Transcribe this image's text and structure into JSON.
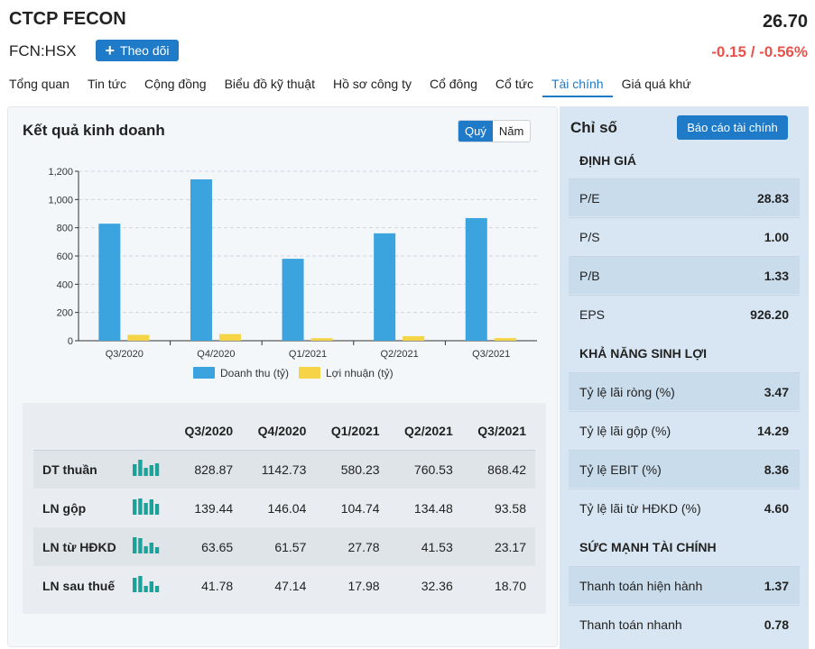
{
  "header": {
    "company_name": "CTCP FECON",
    "ticker": "FCN:HSX",
    "follow_label": "Theo dõi",
    "price": "26.70",
    "change": "-0.15 / -0.56%",
    "change_color": "#e8524a"
  },
  "tabs": [
    {
      "label": "Tổng quan"
    },
    {
      "label": "Tin tức"
    },
    {
      "label": "Cộng đồng"
    },
    {
      "label": "Biểu đồ kỹ thuật"
    },
    {
      "label": "Hồ sơ công ty"
    },
    {
      "label": "Cổ đông"
    },
    {
      "label": "Cổ tức"
    },
    {
      "label": "Tài chính",
      "active": true
    },
    {
      "label": "Giá quá khứ"
    }
  ],
  "business": {
    "title": "Kết quả kinh doanh",
    "toggle_quarter": "Quý",
    "toggle_year": "Năm",
    "toggle_selected": "Quý"
  },
  "chart_data": {
    "type": "bar",
    "categories": [
      "Q3/2020",
      "Q4/2020",
      "Q1/2021",
      "Q2/2021",
      "Q3/2021"
    ],
    "series": [
      {
        "name": "Doanh thu (tỷ)",
        "values": [
          828.87,
          1142.73,
          580.23,
          760.53,
          868.42
        ],
        "color": "#3ba3dd"
      },
      {
        "name": "Lợi nhuận (tỷ)",
        "values": [
          41.78,
          47.14,
          17.98,
          32.36,
          18.7
        ],
        "color": "#f5d547"
      }
    ],
    "yticks": [
      "0",
      "200",
      "400",
      "600",
      "800",
      "1,000",
      "1,200"
    ],
    "ylim": [
      0,
      1200
    ],
    "grid": true,
    "legend_position": "bottom"
  },
  "table": {
    "columns": [
      "Q3/2020",
      "Q4/2020",
      "Q1/2021",
      "Q2/2021",
      "Q3/2021"
    ],
    "rows": [
      {
        "label": "DT thuần",
        "values": [
          "828.87",
          "1142.73",
          "580.23",
          "760.53",
          "868.42"
        ]
      },
      {
        "label": "LN gộp",
        "values": [
          "139.44",
          "146.04",
          "104.74",
          "134.48",
          "93.58"
        ]
      },
      {
        "label": "LN từ HĐKD",
        "values": [
          "63.65",
          "61.57",
          "27.78",
          "41.53",
          "23.17"
        ]
      },
      {
        "label": "LN sau thuế",
        "values": [
          "41.78",
          "47.14",
          "17.98",
          "32.36",
          "18.70"
        ]
      }
    ],
    "sparkline_color": "#1aa39b"
  },
  "indices": {
    "title": "Chỉ số",
    "report_button": "Báo cáo tài chính",
    "sections": [
      {
        "title": "ĐỊNH GIÁ",
        "metrics": [
          {
            "label": "P/E",
            "value": "28.83"
          },
          {
            "label": "P/S",
            "value": "1.00"
          },
          {
            "label": "P/B",
            "value": "1.33"
          },
          {
            "label": "EPS",
            "value": "926.20"
          }
        ]
      },
      {
        "title": "KHẢ NĂNG SINH LỢI",
        "metrics": [
          {
            "label": "Tỷ lệ lãi ròng (%)",
            "value": "3.47"
          },
          {
            "label": "Tỷ lệ lãi gộp (%)",
            "value": "14.29"
          },
          {
            "label": "Tỷ lệ EBIT (%)",
            "value": "8.36"
          },
          {
            "label": "Tỷ lệ lãi từ HĐKD (%)",
            "value": "4.60"
          }
        ]
      },
      {
        "title": "SỨC MẠNH TÀI CHÍNH",
        "metrics": [
          {
            "label": "Thanh toán hiện hành",
            "value": "1.37"
          },
          {
            "label": "Thanh toán nhanh",
            "value": "0.78"
          }
        ]
      }
    ]
  }
}
